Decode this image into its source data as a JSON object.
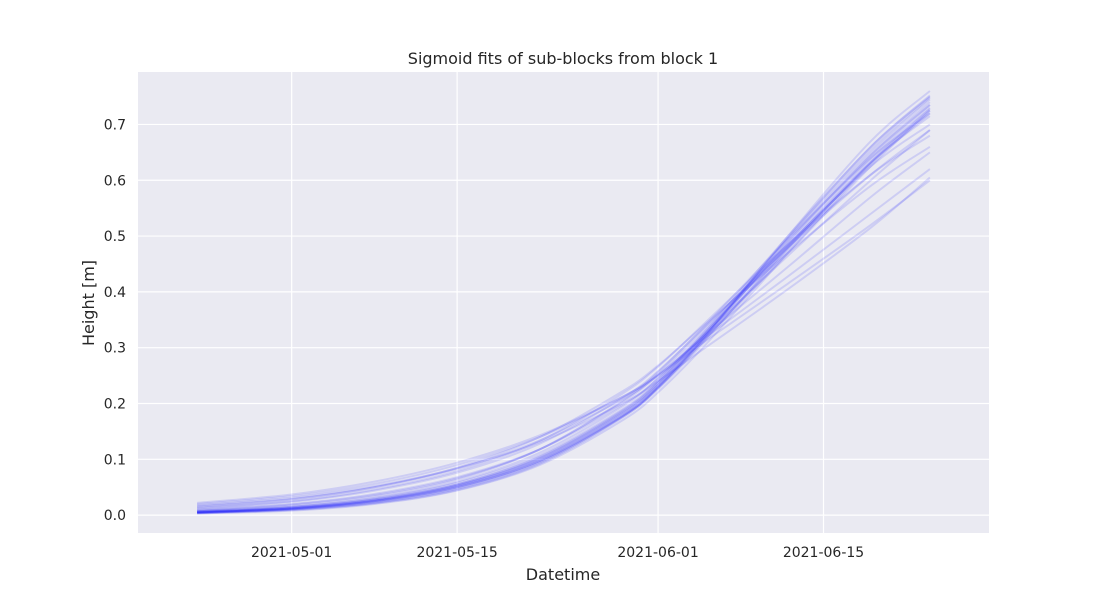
{
  "chart_data": {
    "type": "line",
    "title": "Sigmoid fits of sub-blocks from block 1",
    "xlabel": "Datetime",
    "ylabel": "Height [m]",
    "x_axis": {
      "kind": "date",
      "range": [
        "2021-04-18",
        "2021-06-29"
      ],
      "ticks": [
        "2021-05-01",
        "2021-05-15",
        "2021-06-01",
        "2021-06-15"
      ]
    },
    "y_axis": {
      "range": [
        -0.032,
        0.794
      ],
      "ticks": [
        "0.0",
        "0.1",
        "0.2",
        "0.3",
        "0.4",
        "0.5",
        "0.6",
        "0.7"
      ]
    },
    "grid": true,
    "legend": "none",
    "style": {
      "plot_background": "#eaeaf2",
      "grid_color": "#ffffff",
      "line_color": "#0000ff",
      "line_alpha": 0.12
    },
    "series_x": [
      "2021-04-23",
      "2021-05-01",
      "2021-05-08",
      "2021-05-15",
      "2021-05-22",
      "2021-05-29",
      "2021-06-01",
      "2021-06-05",
      "2021-06-12",
      "2021-06-19",
      "2021-06-24"
    ],
    "series": [
      {
        "values": [
          0.005,
          0.012,
          0.026,
          0.052,
          0.1,
          0.182,
          0.233,
          0.32,
          0.49,
          0.65,
          0.745
        ]
      },
      {
        "values": [
          0.006,
          0.013,
          0.028,
          0.055,
          0.105,
          0.188,
          0.24,
          0.33,
          0.5,
          0.66,
          0.75
        ]
      },
      {
        "values": [
          0.004,
          0.011,
          0.024,
          0.05,
          0.097,
          0.178,
          0.228,
          0.315,
          0.48,
          0.64,
          0.735
        ]
      },
      {
        "values": [
          0.005,
          0.012,
          0.025,
          0.051,
          0.098,
          0.18,
          0.231,
          0.318,
          0.47,
          0.625,
          0.725
        ]
      },
      {
        "values": [
          0.006,
          0.013,
          0.027,
          0.054,
          0.102,
          0.185,
          0.236,
          0.325,
          0.495,
          0.655,
          0.748
        ]
      },
      {
        "values": [
          0.005,
          0.012,
          0.026,
          0.053,
          0.101,
          0.183,
          0.234,
          0.322,
          0.485,
          0.645,
          0.74
        ]
      },
      {
        "values": [
          0.004,
          0.01,
          0.023,
          0.048,
          0.095,
          0.176,
          0.226,
          0.312,
          0.475,
          0.635,
          0.73
        ]
      },
      {
        "values": [
          0.007,
          0.015,
          0.031,
          0.06,
          0.112,
          0.195,
          0.245,
          0.33,
          0.48,
          0.63,
          0.72
        ]
      },
      {
        "values": [
          0.01,
          0.02,
          0.038,
          0.068,
          0.118,
          0.198,
          0.245,
          0.325,
          0.465,
          0.6,
          0.69
        ]
      },
      {
        "values": [
          0.016,
          0.029,
          0.05,
          0.083,
          0.134,
          0.208,
          0.25,
          0.322,
          0.445,
          0.57,
          0.65
        ]
      },
      {
        "values": [
          0.02,
          0.034,
          0.056,
          0.09,
          0.14,
          0.212,
          0.252,
          0.318,
          0.428,
          0.54,
          0.62
        ]
      },
      {
        "values": [
          0.022,
          0.037,
          0.06,
          0.094,
          0.143,
          0.212,
          0.25,
          0.312,
          0.415,
          0.52,
          0.6
        ]
      },
      {
        "values": [
          0.012,
          0.024,
          0.044,
          0.076,
          0.128,
          0.21,
          0.258,
          0.338,
          0.48,
          0.61,
          0.69
        ]
      },
      {
        "values": [
          0.003,
          0.009,
          0.021,
          0.045,
          0.092,
          0.175,
          0.228,
          0.32,
          0.5,
          0.67,
          0.76
        ]
      },
      {
        "values": [
          0.003,
          0.008,
          0.02,
          0.044,
          0.09,
          0.17,
          0.22,
          0.305,
          0.47,
          0.63,
          0.725
        ]
      },
      {
        "values": [
          0.008,
          0.017,
          0.034,
          0.064,
          0.118,
          0.205,
          0.256,
          0.34,
          0.495,
          0.64,
          0.72
        ]
      },
      {
        "values": [
          0.013,
          0.025,
          0.046,
          0.079,
          0.133,
          0.218,
          0.266,
          0.345,
          0.485,
          0.61,
          0.68
        ]
      },
      {
        "values": [
          0.009,
          0.019,
          0.036,
          0.066,
          0.118,
          0.203,
          0.252,
          0.335,
          0.485,
          0.625,
          0.7
        ]
      },
      {
        "values": [
          0.006,
          0.014,
          0.028,
          0.055,
          0.104,
          0.186,
          0.237,
          0.326,
          0.49,
          0.645,
          0.735
        ]
      },
      {
        "values": [
          0.005,
          0.011,
          0.025,
          0.05,
          0.097,
          0.178,
          0.229,
          0.316,
          0.478,
          0.632,
          0.728
        ]
      },
      {
        "values": [
          0.015,
          0.028,
          0.05,
          0.085,
          0.14,
          0.222,
          0.268,
          0.342,
          0.47,
          0.59,
          0.66
        ]
      },
      {
        "values": [
          0.018,
          0.031,
          0.052,
          0.084,
          0.131,
          0.2,
          0.24,
          0.3,
          0.405,
          0.515,
          0.605
        ]
      },
      {
        "values": [
          0.004,
          0.01,
          0.022,
          0.047,
          0.094,
          0.177,
          0.23,
          0.322,
          0.497,
          0.66,
          0.752
        ]
      },
      {
        "values": [
          0.007,
          0.015,
          0.03,
          0.058,
          0.108,
          0.19,
          0.24,
          0.326,
          0.483,
          0.632,
          0.715
        ]
      }
    ]
  }
}
